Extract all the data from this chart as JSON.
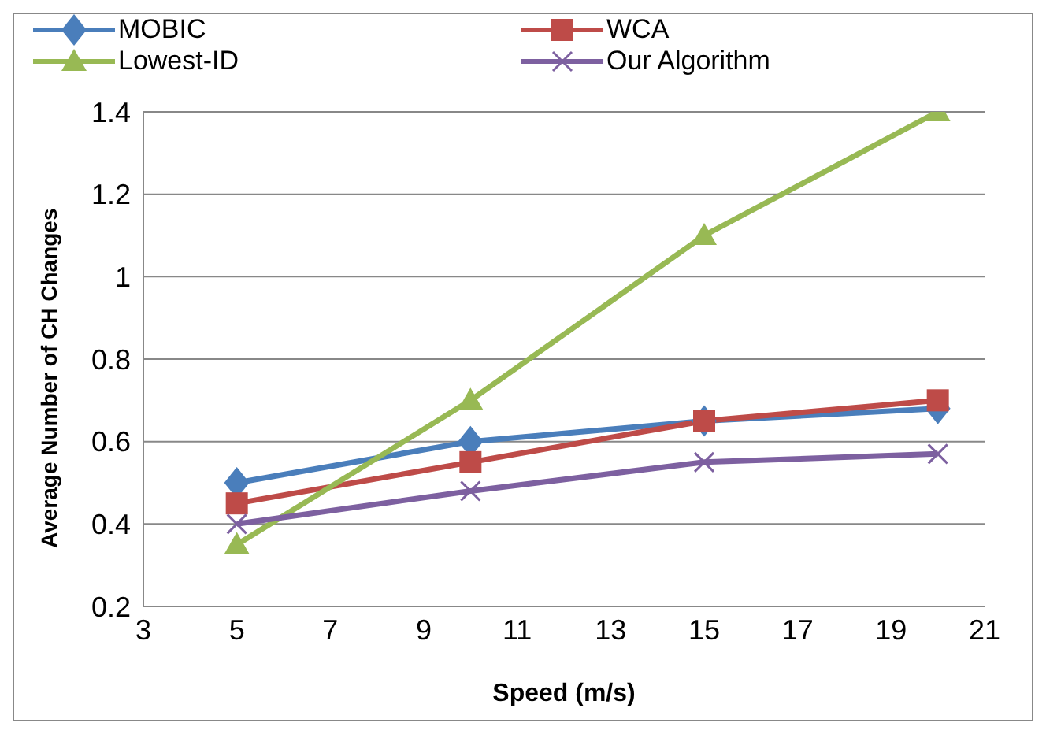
{
  "chart_data": {
    "type": "line",
    "xlabel": "Speed (m/s)",
    "ylabel": "Average Number of CH Changes",
    "x": [
      5,
      10,
      15,
      20
    ],
    "series": [
      {
        "name": "MOBIC",
        "color": "#4a7ebb",
        "marker": "diamond",
        "values": [
          0.5,
          0.6,
          0.65,
          0.68
        ]
      },
      {
        "name": "WCA",
        "color": "#be4b48",
        "marker": "square",
        "values": [
          0.45,
          0.55,
          0.65,
          0.7
        ]
      },
      {
        "name": "Lowest-ID",
        "color": "#98b954",
        "marker": "triangle",
        "values": [
          0.35,
          0.7,
          1.1,
          1.4
        ]
      },
      {
        "name": "Our Algorithm",
        "color": "#7d60a0",
        "marker": "cross",
        "values": [
          0.4,
          0.48,
          0.55,
          0.57
        ]
      }
    ],
    "xlim": [
      3,
      21
    ],
    "xticks": [
      3,
      5,
      7,
      9,
      11,
      13,
      15,
      17,
      19,
      21
    ],
    "ylim": [
      0.2,
      1.4
    ],
    "yticks": [
      0.2,
      0.4,
      0.6,
      0.8,
      1,
      1.2,
      1.4
    ],
    "grid": "y",
    "legend": "top",
    "line_style": "solid"
  }
}
